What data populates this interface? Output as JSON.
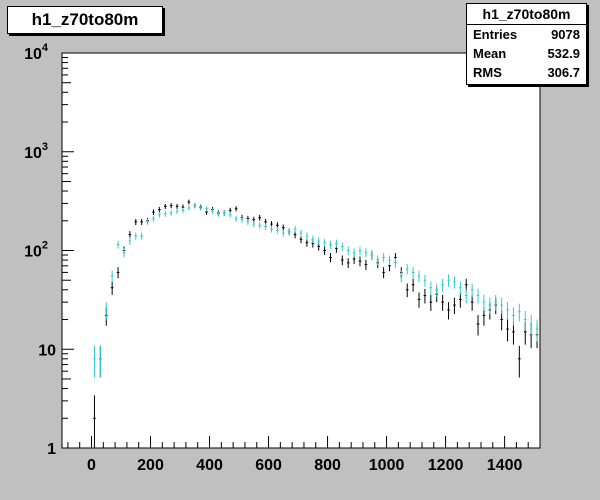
{
  "title": "h1_z70to80m",
  "stats": {
    "title": "h1_z70to80m",
    "rows": [
      {
        "label": "Entries",
        "value": "9078"
      },
      {
        "label": "Mean",
        "value": "532.9"
      },
      {
        "label": "RMS",
        "value": "306.7"
      }
    ]
  },
  "colors": {
    "series1": "#000000",
    "series2": "#33cccc",
    "frame_bg": "#ffffff",
    "pad_bg": "#c0c0c0"
  },
  "chart_data": {
    "type": "scatter",
    "title": "h1_z70to80m",
    "xlabel": "",
    "ylabel": "",
    "xlim": [
      -100,
      1520
    ],
    "ylim": [
      1,
      10000
    ],
    "yscale": "log",
    "xticks": [
      0,
      200,
      400,
      600,
      800,
      1000,
      1200,
      1400
    ],
    "yticks": [
      {
        "value": 1,
        "label": "1"
      },
      {
        "value": 10,
        "label": "10"
      },
      {
        "value": 100,
        "label": "10",
        "exp": "2"
      },
      {
        "value": 1000,
        "label": "10",
        "exp": "3"
      },
      {
        "value": 10000,
        "label": "10",
        "exp": "4"
      }
    ],
    "grid": false,
    "series": [
      {
        "color": "#000000",
        "points": [
          {
            "x": 10,
            "y": 2
          },
          {
            "x": 30,
            "y": 8
          },
          {
            "x": 50,
            "y": 22
          },
          {
            "x": 70,
            "y": 42
          },
          {
            "x": 90,
            "y": 60
          },
          {
            "x": 110,
            "y": 100
          },
          {
            "x": 130,
            "y": 145
          },
          {
            "x": 150,
            "y": 195
          },
          {
            "x": 170,
            "y": 195
          },
          {
            "x": 190,
            "y": 200
          },
          {
            "x": 210,
            "y": 245
          },
          {
            "x": 230,
            "y": 260
          },
          {
            "x": 250,
            "y": 280
          },
          {
            "x": 270,
            "y": 285
          },
          {
            "x": 290,
            "y": 280
          },
          {
            "x": 310,
            "y": 275
          },
          {
            "x": 330,
            "y": 310
          },
          {
            "x": 350,
            "y": 285
          },
          {
            "x": 370,
            "y": 275
          },
          {
            "x": 390,
            "y": 245
          },
          {
            "x": 410,
            "y": 260
          },
          {
            "x": 430,
            "y": 240
          },
          {
            "x": 450,
            "y": 240
          },
          {
            "x": 470,
            "y": 255
          },
          {
            "x": 490,
            "y": 265
          },
          {
            "x": 510,
            "y": 215
          },
          {
            "x": 530,
            "y": 210
          },
          {
            "x": 550,
            "y": 205
          },
          {
            "x": 570,
            "y": 215
          },
          {
            "x": 590,
            "y": 195
          },
          {
            "x": 610,
            "y": 185
          },
          {
            "x": 630,
            "y": 180
          },
          {
            "x": 650,
            "y": 170
          },
          {
            "x": 670,
            "y": 155
          },
          {
            "x": 690,
            "y": 145
          },
          {
            "x": 710,
            "y": 130
          },
          {
            "x": 730,
            "y": 120
          },
          {
            "x": 750,
            "y": 118
          },
          {
            "x": 770,
            "y": 110
          },
          {
            "x": 790,
            "y": 100
          },
          {
            "x": 810,
            "y": 85
          },
          {
            "x": 830,
            "y": 105
          },
          {
            "x": 850,
            "y": 80
          },
          {
            "x": 870,
            "y": 75
          },
          {
            "x": 890,
            "y": 82
          },
          {
            "x": 910,
            "y": 78
          },
          {
            "x": 930,
            "y": 72
          },
          {
            "x": 950,
            "y": 90
          },
          {
            "x": 970,
            "y": 75
          },
          {
            "x": 990,
            "y": 60
          },
          {
            "x": 1010,
            "y": 70
          },
          {
            "x": 1030,
            "y": 85
          },
          {
            "x": 1050,
            "y": 60
          },
          {
            "x": 1070,
            "y": 40
          },
          {
            "x": 1090,
            "y": 45
          },
          {
            "x": 1110,
            "y": 32
          },
          {
            "x": 1130,
            "y": 35
          },
          {
            "x": 1150,
            "y": 30
          },
          {
            "x": 1170,
            "y": 36
          },
          {
            "x": 1190,
            "y": 30
          },
          {
            "x": 1210,
            "y": 25
          },
          {
            "x": 1230,
            "y": 28
          },
          {
            "x": 1250,
            "y": 32
          },
          {
            "x": 1270,
            "y": 45
          },
          {
            "x": 1290,
            "y": 30
          },
          {
            "x": 1310,
            "y": 18
          },
          {
            "x": 1330,
            "y": 22
          },
          {
            "x": 1350,
            "y": 25
          },
          {
            "x": 1370,
            "y": 28
          },
          {
            "x": 1390,
            "y": 20
          },
          {
            "x": 1410,
            "y": 16
          },
          {
            "x": 1430,
            "y": 15
          },
          {
            "x": 1450,
            "y": 8
          },
          {
            "x": 1470,
            "y": 15
          },
          {
            "x": 1490,
            "y": 14
          },
          {
            "x": 1510,
            "y": 14
          }
        ]
      },
      {
        "color": "#33cccc",
        "points": [
          {
            "x": 10,
            "y": 8
          },
          {
            "x": 30,
            "y": 8
          },
          {
            "x": 50,
            "y": 25
          },
          {
            "x": 70,
            "y": 55
          },
          {
            "x": 90,
            "y": 115
          },
          {
            "x": 110,
            "y": 95
          },
          {
            "x": 130,
            "y": 125
          },
          {
            "x": 150,
            "y": 140
          },
          {
            "x": 170,
            "y": 140
          },
          {
            "x": 190,
            "y": 195
          },
          {
            "x": 210,
            "y": 210
          },
          {
            "x": 230,
            "y": 230
          },
          {
            "x": 250,
            "y": 235
          },
          {
            "x": 270,
            "y": 240
          },
          {
            "x": 290,
            "y": 250
          },
          {
            "x": 310,
            "y": 255
          },
          {
            "x": 330,
            "y": 270
          },
          {
            "x": 350,
            "y": 285
          },
          {
            "x": 370,
            "y": 270
          },
          {
            "x": 390,
            "y": 265
          },
          {
            "x": 410,
            "y": 250
          },
          {
            "x": 430,
            "y": 235
          },
          {
            "x": 450,
            "y": 240
          },
          {
            "x": 470,
            "y": 230
          },
          {
            "x": 490,
            "y": 210
          },
          {
            "x": 510,
            "y": 205
          },
          {
            "x": 530,
            "y": 195
          },
          {
            "x": 550,
            "y": 185
          },
          {
            "x": 570,
            "y": 180
          },
          {
            "x": 590,
            "y": 175
          },
          {
            "x": 610,
            "y": 165
          },
          {
            "x": 630,
            "y": 160
          },
          {
            "x": 650,
            "y": 150
          },
          {
            "x": 670,
            "y": 155
          },
          {
            "x": 690,
            "y": 165
          },
          {
            "x": 710,
            "y": 150
          },
          {
            "x": 730,
            "y": 140
          },
          {
            "x": 750,
            "y": 130
          },
          {
            "x": 770,
            "y": 125
          },
          {
            "x": 790,
            "y": 120
          },
          {
            "x": 810,
            "y": 115
          },
          {
            "x": 830,
            "y": 118
          },
          {
            "x": 850,
            "y": 110
          },
          {
            "x": 870,
            "y": 100
          },
          {
            "x": 890,
            "y": 95
          },
          {
            "x": 910,
            "y": 100
          },
          {
            "x": 930,
            "y": 95
          },
          {
            "x": 950,
            "y": 90
          },
          {
            "x": 970,
            "y": 80
          },
          {
            "x": 990,
            "y": 85
          },
          {
            "x": 1010,
            "y": 80
          },
          {
            "x": 1030,
            "y": 75
          },
          {
            "x": 1050,
            "y": 55
          },
          {
            "x": 1070,
            "y": 65
          },
          {
            "x": 1090,
            "y": 60
          },
          {
            "x": 1110,
            "y": 55
          },
          {
            "x": 1130,
            "y": 50
          },
          {
            "x": 1150,
            "y": 42
          },
          {
            "x": 1170,
            "y": 40
          },
          {
            "x": 1190,
            "y": 45
          },
          {
            "x": 1210,
            "y": 50
          },
          {
            "x": 1230,
            "y": 48
          },
          {
            "x": 1250,
            "y": 42
          },
          {
            "x": 1270,
            "y": 35
          },
          {
            "x": 1290,
            "y": 40
          },
          {
            "x": 1310,
            "y": 35
          },
          {
            "x": 1330,
            "y": 30
          },
          {
            "x": 1350,
            "y": 28
          },
          {
            "x": 1370,
            "y": 30
          },
          {
            "x": 1390,
            "y": 28
          },
          {
            "x": 1410,
            "y": 25
          },
          {
            "x": 1430,
            "y": 22
          },
          {
            "x": 1450,
            "y": 24
          },
          {
            "x": 1470,
            "y": 20
          },
          {
            "x": 1490,
            "y": 18
          },
          {
            "x": 1510,
            "y": 16
          }
        ]
      }
    ]
  }
}
